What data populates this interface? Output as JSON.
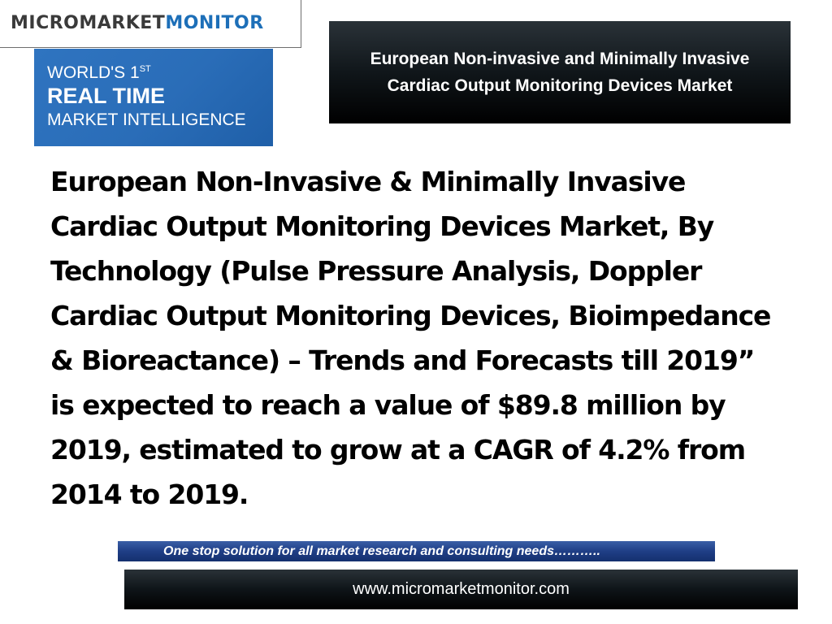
{
  "logo": {
    "part1": "MICROMARKET",
    "part2": "MONITOR"
  },
  "tagline": {
    "line1": "WORLD'S 1",
    "line1_sup": "ST",
    "line2": "REAL TIME",
    "line3": "MARKET INTELLIGENCE"
  },
  "header": {
    "title": "European Non-invasive and Minimally Invasive Cardiac Output Monitoring Devices Market"
  },
  "body": {
    "text": "European Non-Invasive & Minimally Invasive Cardiac Output Monitoring Devices Market, By Technology (Pulse Pressure Analysis, Doppler Cardiac Output Monitoring Devices, Bioimpedance & Bioreactance) – Trends and Forecasts till 2019” is expected to reach a value of $89.8 million by 2019, estimated to grow at a CAGR of 4.2% from 2014 to 2019."
  },
  "slogan": {
    "text": "One stop solution for all market research and consulting needs……….."
  },
  "footer": {
    "url": "www.micromarketmonitor.com"
  },
  "colors": {
    "brand_blue": "#1d6fb8",
    "brand_gray": "#3a3a3a",
    "tagline_bg": "#2a6db8",
    "slogan_bg": "#1f3e86",
    "dark_bar": "#000000"
  }
}
